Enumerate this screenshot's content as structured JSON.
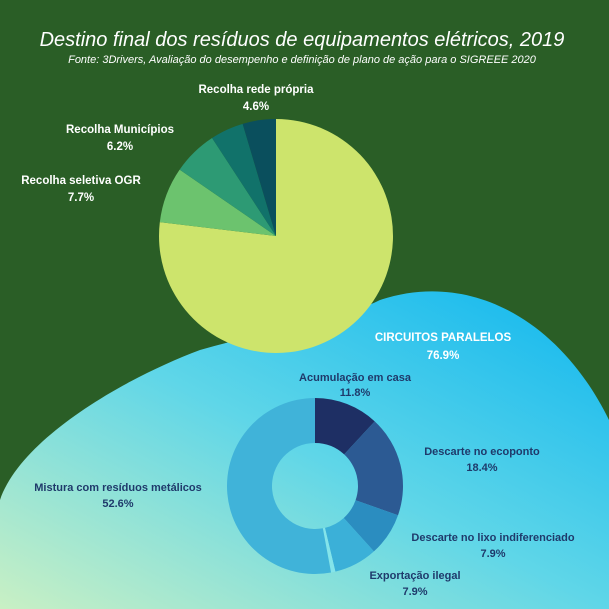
{
  "colors": {
    "background": "#2a5e26",
    "blob_start": "#c9f0c4",
    "blob_mid": "#5fd6e8",
    "blob_end": "#0fb6ef"
  },
  "chart_data": [
    {
      "type": "pie",
      "title": "Destino final dos resíduos de equipamentos elétricos, 2019",
      "subtitle": "Fonte: 3Drivers, Avaliação do desempenho e definição de plano de ação para o SIGREEE 2020",
      "slices": [
        {
          "label": "CIRCUITOS PARALELOS",
          "value": 76.9,
          "value_label": "76.9%",
          "color": "#cde46c"
        },
        {
          "label": "Recolha seletiva OGR",
          "value": 7.7,
          "value_label": "7.7%",
          "color": "#6cc36e"
        },
        {
          "label": "Recolha Municípios",
          "value": 6.2,
          "value_label": "6.2%",
          "color": "#2d9a74"
        },
        {
          "label": "Recolha rede própria",
          "value": 4.6,
          "value_label": "4.6%",
          "color": "#11726a"
        },
        {
          "label": "",
          "value": 4.6,
          "value_label": "",
          "color": "#0a4f5d"
        }
      ]
    },
    {
      "type": "pie",
      "subtype": "donut",
      "parent": "CIRCUITOS PARALELOS",
      "slices": [
        {
          "label": "Acumulação em casa",
          "value": 11.8,
          "value_label": "11.8%",
          "color": "#1e2f64"
        },
        {
          "label": "Descarte no ecoponto",
          "value": 18.4,
          "value_label": "18.4%",
          "color": "#2c5a93"
        },
        {
          "label": "Descarte no lixo indiferenciado",
          "value": 7.9,
          "value_label": "7.9%",
          "color": "#2b8dc0"
        },
        {
          "label": "Exportação ilegal",
          "value": 7.9,
          "value_label": "7.9%",
          "color": "#3bb0d8"
        },
        {
          "label": "",
          "value": 0.8,
          "value_label": "",
          "color": "#84e4ea"
        },
        {
          "label": "Mistura com resíduos metálicos",
          "value": 52.6,
          "value_label": "52.6%",
          "color": "#40b3d9"
        }
      ]
    }
  ]
}
